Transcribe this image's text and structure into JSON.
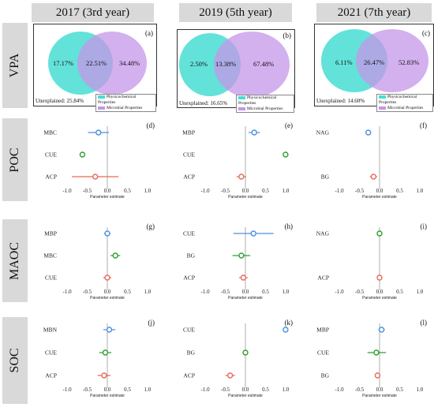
{
  "columns": [
    "2017 (3rd year)",
    "2019 (5th year)",
    "2021 (7th year)"
  ],
  "rows": [
    "VPA",
    "POC",
    "MAOC",
    "SOC"
  ],
  "venn": [
    {
      "label": "(a)",
      "left": "17.17%",
      "overlap": "22.51%",
      "right": "34.48%",
      "unexplained": "Unexplained: 25.84%"
    },
    {
      "label": "(b)",
      "left": "2.50%",
      "overlap": "13.38%",
      "right": "67.48%",
      "unexplained": "Unexplained: 16.65%"
    },
    {
      "label": "(c)",
      "left": "6.11%",
      "overlap": "26.47%",
      "right": "52.83%",
      "unexplained": "Unexplained: 14.60%"
    }
  ],
  "venn_legend": [
    "Physicochemical Properties",
    "Microbial Properties"
  ],
  "colors": {
    "physicochemical": "#48ddd3",
    "microbial": "#c496e8",
    "blue": "#4a90e2",
    "green": "#2ca02c",
    "red": "#e8695a",
    "header": "#d9d9d9"
  },
  "xaxis": {
    "label": "Parameter estimate",
    "ticks": [
      -1.0,
      -0.5,
      0.0,
      0.5,
      1.0
    ],
    "tick_labels": [
      "-1.0",
      "-0.5",
      "0.0",
      "0.5",
      "1.0"
    ],
    "range": [
      -1.1,
      1.1
    ]
  },
  "chart_data": [
    {
      "type": "scatter",
      "panel": "(d)",
      "title": "",
      "xlabel": "Parameter estimate",
      "xlim": [
        -1.1,
        1.1
      ],
      "points": [
        {
          "variable": "MBC",
          "estimate": -0.22,
          "ci": [
            -0.48,
            0.04
          ],
          "color": "blue"
        },
        {
          "variable": "CUE",
          "estimate": -0.62,
          "ci": [
            -0.62,
            -0.62
          ],
          "color": "green"
        },
        {
          "variable": "ACP",
          "estimate": -0.3,
          "ci": [
            -0.88,
            0.28
          ],
          "color": "red"
        }
      ]
    },
    {
      "type": "scatter",
      "panel": "(e)",
      "title": "",
      "xlabel": "Parameter estimate",
      "xlim": [
        -1.1,
        1.1
      ],
      "points": [
        {
          "variable": "MBP",
          "estimate": 0.22,
          "ci": [
            0.08,
            0.36
          ],
          "color": "blue"
        },
        {
          "variable": "CUE",
          "estimate": 1.0,
          "ci": [
            1.0,
            1.0
          ],
          "color": "green"
        },
        {
          "variable": "ACP",
          "estimate": -0.1,
          "ci": [
            -0.22,
            0.02
          ],
          "color": "red"
        }
      ]
    },
    {
      "type": "scatter",
      "panel": "(f)",
      "title": "",
      "xlabel": "Parameter estimate",
      "xlim": [
        -1.1,
        1.1
      ],
      "points": [
        {
          "variable": "NAG",
          "estimate": -0.28,
          "ci": [
            -0.34,
            -0.22
          ],
          "color": "blue"
        },
        {
          "variable": "BG",
          "estimate": -0.15,
          "ci": [
            -0.24,
            -0.06
          ],
          "color": "red"
        }
      ]
    },
    {
      "type": "scatter",
      "panel": "(g)",
      "title": "",
      "xlabel": "Parameter estimate",
      "xlim": [
        -1.1,
        1.1
      ],
      "points": [
        {
          "variable": "MBP",
          "estimate": 0.0,
          "ci": [
            -0.08,
            0.08
          ],
          "color": "blue"
        },
        {
          "variable": "MBC",
          "estimate": 0.2,
          "ci": [
            0.08,
            0.32
          ],
          "color": "green"
        },
        {
          "variable": "CUE",
          "estimate": 0.0,
          "ci": [
            -0.1,
            0.1
          ],
          "color": "red"
        }
      ]
    },
    {
      "type": "scatter",
      "panel": "(h)",
      "title": "",
      "xlabel": "Parameter estimate",
      "xlim": [
        -1.1,
        1.1
      ],
      "points": [
        {
          "variable": "CUE",
          "estimate": 0.2,
          "ci": [
            -0.3,
            0.7
          ],
          "color": "blue"
        },
        {
          "variable": "BG",
          "estimate": -0.1,
          "ci": [
            -0.32,
            0.12
          ],
          "color": "green"
        },
        {
          "variable": "ACP",
          "estimate": -0.05,
          "ci": [
            -0.16,
            0.06
          ],
          "color": "red"
        }
      ]
    },
    {
      "type": "scatter",
      "panel": "(i)",
      "title": "",
      "xlabel": "Parameter estimate",
      "xlim": [
        -1.1,
        1.1
      ],
      "points": [
        {
          "variable": "NAG",
          "estimate": 0.0,
          "ci": [
            0.0,
            0.0
          ],
          "color": "green"
        },
        {
          "variable": "ACP",
          "estimate": 0.0,
          "ci": [
            0.0,
            0.0
          ],
          "color": "red"
        }
      ]
    },
    {
      "type": "scatter",
      "panel": "(j)",
      "title": "",
      "xlabel": "Parameter estimate",
      "xlim": [
        -1.1,
        1.1
      ],
      "points": [
        {
          "variable": "MBN",
          "estimate": 0.05,
          "ci": [
            -0.1,
            0.2
          ],
          "color": "blue"
        },
        {
          "variable": "CUE",
          "estimate": -0.05,
          "ci": [
            -0.2,
            0.1
          ],
          "color": "green"
        },
        {
          "variable": "ACP",
          "estimate": -0.08,
          "ci": [
            -0.24,
            0.08
          ],
          "color": "red"
        }
      ]
    },
    {
      "type": "scatter",
      "panel": "(k)",
      "title": "",
      "xlabel": "Parameter estimate",
      "xlim": [
        -1.1,
        1.1
      ],
      "points": [
        {
          "variable": "CUE",
          "estimate": 1.0,
          "ci": [
            1.0,
            1.0
          ],
          "color": "blue"
        },
        {
          "variable": "BG",
          "estimate": 0.0,
          "ci": [
            0.0,
            0.0
          ],
          "color": "green"
        },
        {
          "variable": "ACP",
          "estimate": -0.38,
          "ci": [
            -0.5,
            -0.26
          ],
          "color": "red"
        }
      ]
    },
    {
      "type": "scatter",
      "panel": "(l)",
      "title": "",
      "xlabel": "Parameter estimate",
      "xlim": [
        -1.1,
        1.1
      ],
      "points": [
        {
          "variable": "MBP",
          "estimate": 0.05,
          "ci": [
            -0.03,
            0.13
          ],
          "color": "blue"
        },
        {
          "variable": "CUE",
          "estimate": -0.08,
          "ci": [
            -0.3,
            0.16
          ],
          "color": "green"
        },
        {
          "variable": "BG",
          "estimate": -0.05,
          "ci": [
            -0.1,
            0.0
          ],
          "color": "red"
        }
      ]
    }
  ]
}
